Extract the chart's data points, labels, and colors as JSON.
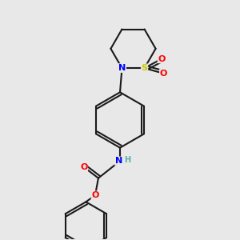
{
  "bg": "#e8e8e8",
  "mc": "#1a1a1a",
  "Nc": "#0000ff",
  "Oc": "#ff0000",
  "Sc": "#cccc00",
  "Hc": "#5aacac",
  "lw": 1.5,
  "bo": 0.1,
  "figsize": [
    3.0,
    3.0
  ],
  "dpi": 100,
  "xlim": [
    0.5,
    8.5
  ],
  "ylim": [
    0.5,
    9.5
  ]
}
